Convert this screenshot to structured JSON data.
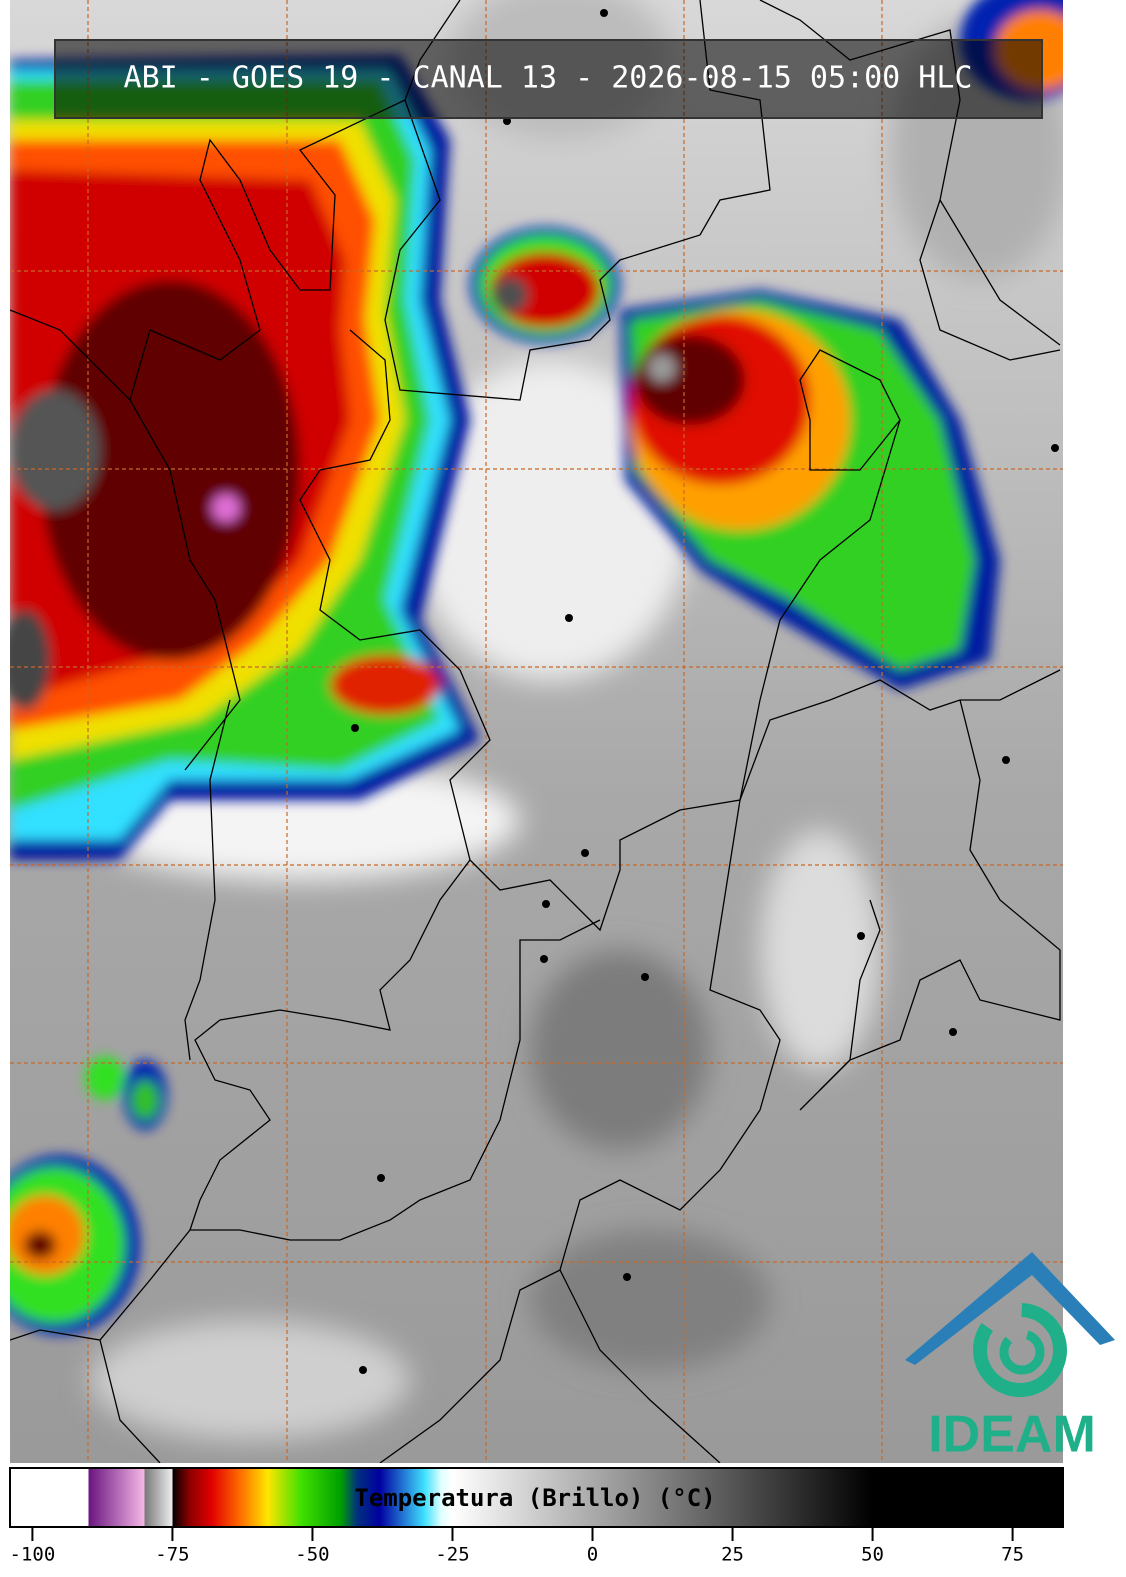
{
  "title": "ABI - GOES 19 - CANAL 13 - 2026-08-15 05:00 HLC",
  "colorbar": {
    "label": "Temperatura (Brillo) (°C)",
    "lim": [
      -104,
      84
    ],
    "ticks": [
      -100,
      -75,
      -50,
      -25,
      0,
      25,
      50,
      75
    ],
    "stops": [
      {
        "value": -104,
        "color": "#ffffff"
      },
      {
        "value": -90,
        "color": "#ffffff"
      },
      {
        "value": -90,
        "color": "#6a1480"
      },
      {
        "value": -80,
        "color": "#f4b8e6"
      },
      {
        "value": -80,
        "color": "#777777"
      },
      {
        "value": -75,
        "color": "#eeeeee"
      },
      {
        "value": -75,
        "color": "#000000"
      },
      {
        "value": -72,
        "color": "#8b0000"
      },
      {
        "value": -68,
        "color": "#e00000"
      },
      {
        "value": -63,
        "color": "#ff6a00"
      },
      {
        "value": -58,
        "color": "#ffe600"
      },
      {
        "value": -52,
        "color": "#40e000"
      },
      {
        "value": -45,
        "color": "#00a000"
      },
      {
        "value": -42,
        "color": "#003080"
      },
      {
        "value": -38,
        "color": "#0000a0"
      },
      {
        "value": -30,
        "color": "#40e0ff"
      },
      {
        "value": -27,
        "color": "#e0ffff"
      },
      {
        "value": -25,
        "color": "#ffffff"
      },
      {
        "value": 50,
        "color": "#000000"
      },
      {
        "value": 84,
        "color": "#000000"
      }
    ]
  },
  "logo": "IDEAM"
}
